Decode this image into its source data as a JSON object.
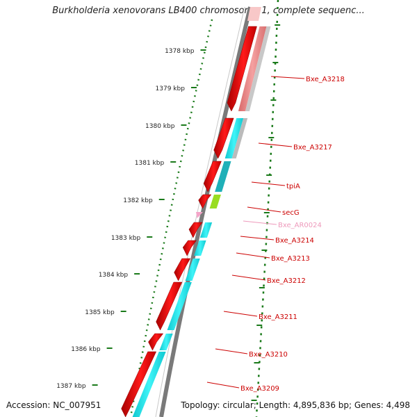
{
  "title": "Burkholderia xenovorans LB400 chromosome 1, complete sequenc...",
  "footer": {
    "accession": "Accession: NC_007951",
    "topology": "Topology: circular; Length: 4,895,836 bp; Genes: 4,498"
  },
  "colors": {
    "cds_forward": "#f20000",
    "cds_forward_dark": "#a80000",
    "cogs_salmon": "#e88080",
    "cogs_cyan": "#00e0e8",
    "cogs_teal": "#20b0b8",
    "cogs_green": "#99dd22",
    "misc_rna": "#f4a4c8",
    "label_red": "#cc0000",
    "label_pink": "#ee99bb",
    "backbone": "#7a7a7a",
    "ticks": "#1a7a1a"
  },
  "ruler": {
    "unit": "kbp",
    "ticks": [
      "1378 kbp",
      "1379 kbp",
      "1380 kbp",
      "1381 kbp",
      "1382 kbp",
      "1383 kbp",
      "1384 kbp",
      "1385 kbp",
      "1386 kbp",
      "1387 kbp"
    ]
  },
  "genes": [
    {
      "label": "Bxe_A3218",
      "kind": "cds"
    },
    {
      "label": "Bxe_A3217",
      "kind": "cds"
    },
    {
      "label": "tpiA",
      "kind": "cds"
    },
    {
      "label": "secG",
      "kind": "cds"
    },
    {
      "label": "Bxe_AR0024",
      "kind": "misc_rna"
    },
    {
      "label": "Bxe_A3214",
      "kind": "cds"
    },
    {
      "label": "Bxe_A3213",
      "kind": "cds"
    },
    {
      "label": "Bxe_A3212",
      "kind": "cds"
    },
    {
      "label": "Bxe_A3211",
      "kind": "cds"
    },
    {
      "label": "Bxe_A3210",
      "kind": "cds"
    },
    {
      "label": "Bxe_A3209",
      "kind": "cds"
    }
  ]
}
